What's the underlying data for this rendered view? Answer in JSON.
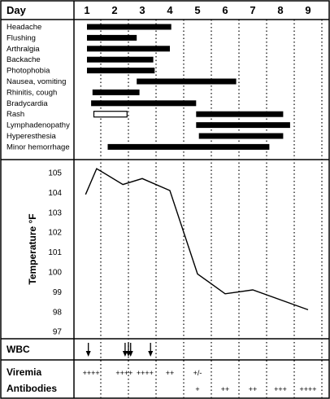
{
  "chart_data": {
    "type": "timeline",
    "title": "",
    "days": [
      "1",
      "2",
      "3",
      "4",
      "5",
      "6",
      "7",
      "8",
      "9"
    ],
    "header": {
      "left_label": "Day"
    },
    "symptoms": {
      "rows": [
        {
          "label": "Headache",
          "start": 1.0,
          "end": 4.05,
          "style": "filled"
        },
        {
          "label": "Flushing",
          "start": 1.0,
          "end": 2.8,
          "style": "filled"
        },
        {
          "label": "Arthralgia",
          "start": 1.0,
          "end": 4.0,
          "style": "filled"
        },
        {
          "label": "Backache",
          "start": 1.0,
          "end": 3.4,
          "style": "filled"
        },
        {
          "label": "Photophobia",
          "start": 1.0,
          "end": 3.45,
          "style": "filled"
        },
        {
          "label": "Nausea, vomiting",
          "start": 2.8,
          "end": 6.4,
          "style": "filled"
        },
        {
          "label": "Rhinitis, cough",
          "start": 1.2,
          "end": 2.9,
          "style": "filled"
        },
        {
          "label": "Bradycardia",
          "start": 1.15,
          "end": 4.95,
          "style": "filled"
        },
        {
          "label": "Rash",
          "start": 1.25,
          "end": 2.45,
          "style": "outline"
        },
        {
          "label": "Rash",
          "start": 4.95,
          "end": 8.1,
          "style": "filled"
        },
        {
          "label": "Lymphadenopathy",
          "start": 4.95,
          "end": 8.35,
          "style": "filled"
        },
        {
          "label": "Hyperesthesia",
          "start": 5.05,
          "end": 8.1,
          "style": "filled"
        },
        {
          "label": "Minor hemorrhage",
          "start": 1.75,
          "end": 7.6,
          "style": "filled"
        }
      ]
    },
    "temperature": {
      "ylabel": "Temperature °F",
      "yticks": [
        "105",
        "104",
        "103",
        "102",
        "101",
        "100",
        "99",
        "98",
        "97"
      ],
      "ylim": [
        96.5,
        105.5
      ],
      "points": [
        [
          0.95,
          103.9
        ],
        [
          1.35,
          105.2
        ],
        [
          2.3,
          104.4
        ],
        [
          3.0,
          104.7
        ],
        [
          4.0,
          104.1
        ],
        [
          5.0,
          99.9
        ],
        [
          6.0,
          98.9
        ],
        [
          7.0,
          99.1
        ],
        [
          9.0,
          98.1
        ]
      ]
    },
    "wbc": {
      "label": "WBC",
      "arrows": [
        1.05,
        2.38,
        2.5,
        2.58,
        3.3
      ]
    },
    "viremia": {
      "label": "Viremia",
      "entries": [
        {
          "day": 1.15,
          "text": "++++"
        },
        {
          "day": 2.35,
          "text": "++++"
        },
        {
          "day": 3.1,
          "text": "++++"
        },
        {
          "day": 4.0,
          "text": "++"
        },
        {
          "day": 5.0,
          "text": "+/-"
        }
      ]
    },
    "antibodies": {
      "label": "Antibodies",
      "entries": [
        {
          "day": 5.0,
          "text": "+"
        },
        {
          "day": 6.0,
          "text": "++"
        },
        {
          "day": 7.0,
          "text": "++"
        },
        {
          "day": 8.0,
          "text": "+++"
        },
        {
          "day": 9.0,
          "text": "++++"
        }
      ]
    }
  }
}
